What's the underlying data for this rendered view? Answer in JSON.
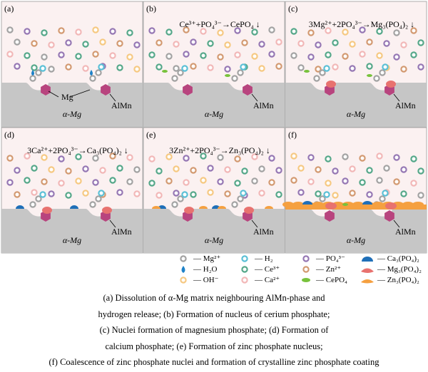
{
  "panels": [
    {
      "id": "a",
      "label": "(a)",
      "equation": "",
      "substrate": "α-Mg",
      "alloy": "AlMn",
      "extra_label": "Mg"
    },
    {
      "id": "b",
      "label": "(b)",
      "equation": "Ce³⁺+PO₄³⁻→CePO₄ ↓",
      "substrate": "α-Mg",
      "alloy": "AlMn"
    },
    {
      "id": "c",
      "label": "(c)",
      "equation": "3Mg²⁺+2PO₄³⁻→Mg₃(PO₄)₂ ↓",
      "substrate": "α-Mg",
      "alloy": "AlMn"
    },
    {
      "id": "d",
      "label": "(d)",
      "equation": "3Ca²⁺+2PO₄³⁻→Ca₃(PO₄)₂ ↓",
      "substrate": "α-Mg",
      "alloy": "AlMn"
    },
    {
      "id": "e",
      "label": "(e)",
      "equation": "3Zn²⁺+2PO₄³⁻→Zn₃(PO₄)₂ ↓",
      "substrate": "α-Mg",
      "alloy": "AlMn"
    },
    {
      "id": "f",
      "label": "(f)",
      "equation": "",
      "substrate": "α-Mg",
      "alloy": "AlMn"
    }
  ],
  "legend": [
    {
      "symbol": "mg",
      "label": "— Mg²⁺"
    },
    {
      "symbol": "h2",
      "label": "— H₂"
    },
    {
      "symbol": "po4",
      "label": "— PO₄³⁻"
    },
    {
      "symbol": "ca3",
      "label": "— Ca₃(PO₄)₂"
    },
    {
      "symbol": "h2o",
      "label": "— H₂O"
    },
    {
      "symbol": "ce",
      "label": "— Ce³⁺"
    },
    {
      "symbol": "zn",
      "label": "— Zn²⁺"
    },
    {
      "symbol": "mg3",
      "label": "— Mg₃(PO₄)₂"
    },
    {
      "symbol": "oh",
      "label": "— OH⁻"
    },
    {
      "symbol": "ca",
      "label": "— Ca²⁺"
    },
    {
      "symbol": "cepo4",
      "label": "— CePO₄"
    },
    {
      "symbol": "zn3",
      "label": "— Zn₃(PO₄)₂"
    }
  ],
  "caption": [
    "(a) Dissolution of α-Mg matrix neighbouring AlMn-phase and",
    "hydrogen release; (b) Formation of nucleus of cerium phosphate;",
    "(c) Nuclei formation of magnesium phosphate; (d) Formation of",
    "calcium phosphate; (e) Formation of zinc phosphate nucleus;",
    "(f) Coalescence of zinc phosphate nuclei and formation of crystalline  zinc phosphate coating"
  ],
  "colors": {
    "mg": "#a3a3a3",
    "h2": "#5bc0d6",
    "po4": "#9678b4",
    "ce": "#56a88a",
    "zn": "#d39a72",
    "ca": "#f2b8b8",
    "oh": "#f6c983",
    "h2o": "#1e82c8",
    "cepo4": "#78c23c",
    "ca3": "#1f6fb8",
    "mg3": "#e8726f",
    "zn3": "#f5a040",
    "alloy": "#b8447e",
    "substrate": "#c6c6c6",
    "solution": "#fbf1f1"
  }
}
